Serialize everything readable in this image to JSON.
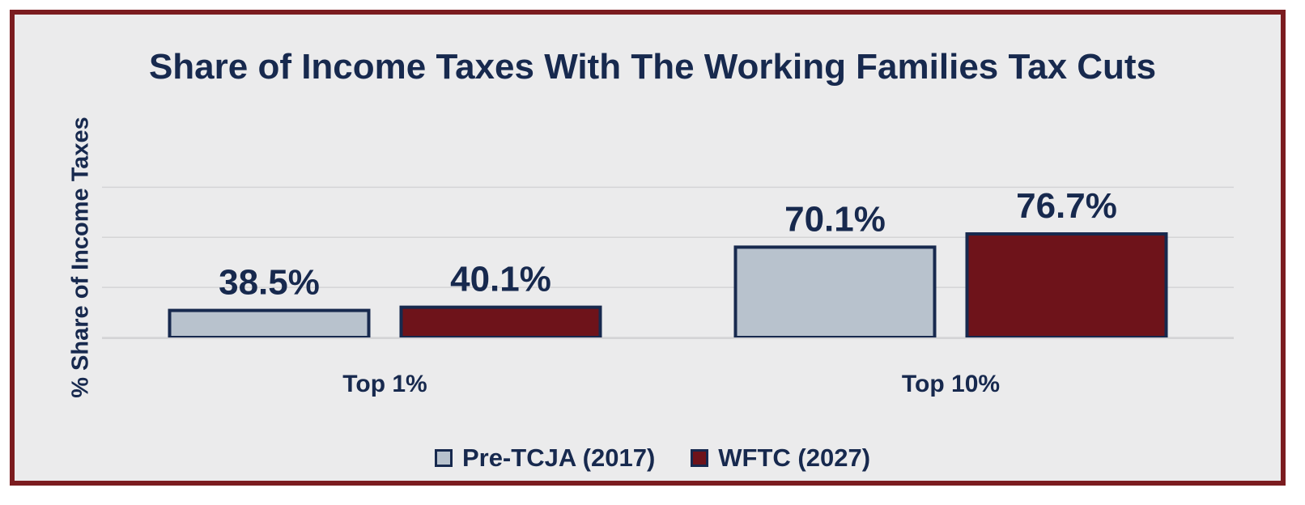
{
  "chart_data": {
    "type": "bar",
    "title": "Share of Income Taxes With The Working Families Tax Cuts",
    "xlabel": "",
    "ylabel": "% Share of Income Taxes",
    "categories": [
      "Top 1%",
      "Top 10%"
    ],
    "series": [
      {
        "name": "Pre-TCJA (2017)",
        "values": [
          38.5,
          70.1
        ],
        "labels": [
          "38.5%",
          "70.1%"
        ],
        "color": "#b8c2cd"
      },
      {
        "name": "WFTC (2027)",
        "values": [
          40.1,
          76.7
        ],
        "labels": [
          "40.1%",
          "76.7%"
        ],
        "color": "#6e131a"
      }
    ],
    "ylim": [
      25,
      100
    ],
    "grid": true,
    "legend_position": "bottom"
  },
  "colors": {
    "frame": "#7b1c1f",
    "background": "#ebebec",
    "text": "#17294e",
    "outline": "#17294e",
    "gridline": "#d4d4d6"
  }
}
